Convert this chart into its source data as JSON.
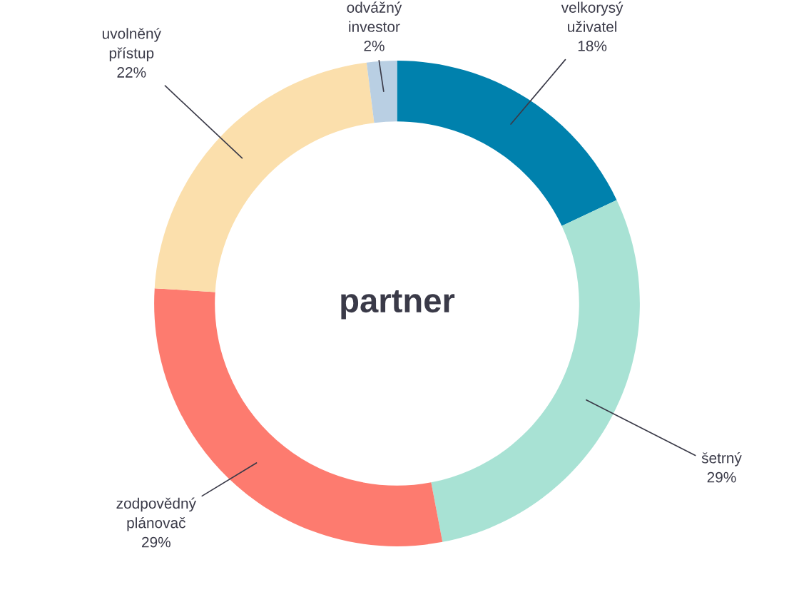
{
  "chart_data": {
    "type": "donut",
    "title": "partner",
    "categories": [
      "velkorysý\nuživatel",
      "šetrný",
      "zodpovědný\nplánovač",
      "uvolněný\npřístup",
      "odvážný\ninvestor"
    ],
    "values": [
      18,
      29,
      29,
      22,
      2
    ],
    "colors": [
      "#0081ad",
      "#a8e2d4",
      "#fd7b6f",
      "#fbdfac",
      "#b9cfe3"
    ],
    "value_labels": [
      "18%",
      "29%",
      "29%",
      "22%",
      "2%"
    ]
  }
}
